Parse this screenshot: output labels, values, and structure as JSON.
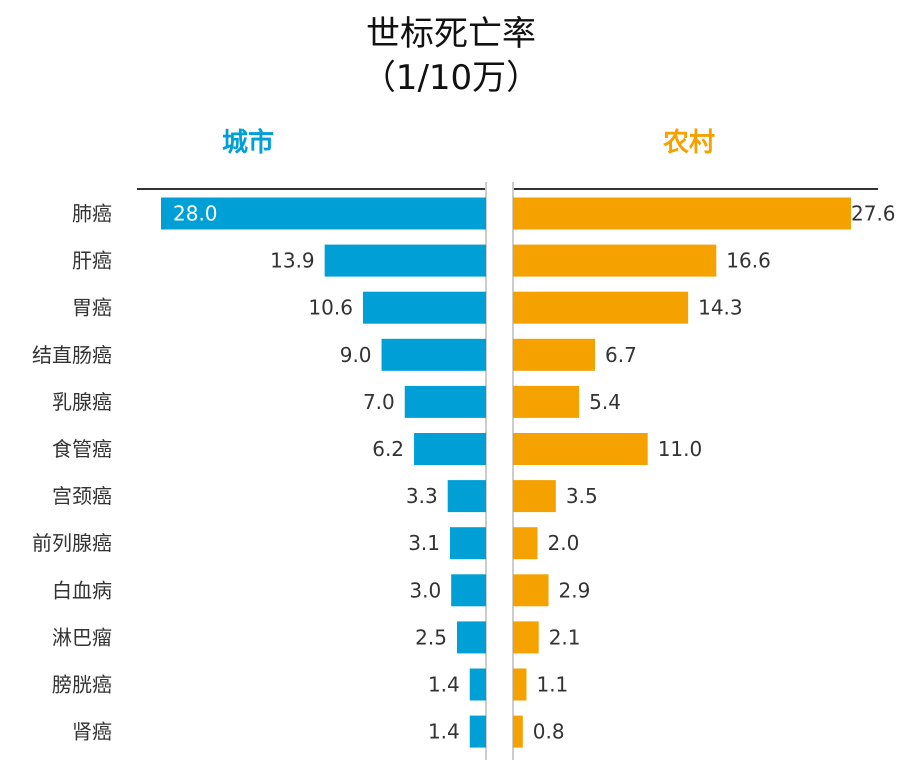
{
  "chart_data": {
    "type": "bar",
    "orientation": "horizontal-butterfly",
    "title_line1": "世标死亡率",
    "title_line2": "（1/10万）",
    "categories": [
      "肺癌",
      "肝癌",
      "胃癌",
      "结直肠癌",
      "乳腺癌",
      "食管癌",
      "宫颈癌",
      "前列腺癌",
      "白血病",
      "淋巴瘤",
      "膀胱癌",
      "肾癌"
    ],
    "series": [
      {
        "name": "城市",
        "color": "#00a0d6",
        "values": [
          28.0,
          13.9,
          10.6,
          9.0,
          7.0,
          6.2,
          3.3,
          3.1,
          3.0,
          2.5,
          1.4,
          1.4
        ]
      },
      {
        "name": "农村",
        "color": "#f5a100",
        "values": [
          27.6,
          16.6,
          14.3,
          6.7,
          5.4,
          11.0,
          3.5,
          2.0,
          2.9,
          2.1,
          1.1,
          0.8
        ]
      }
    ],
    "grid": false
  }
}
